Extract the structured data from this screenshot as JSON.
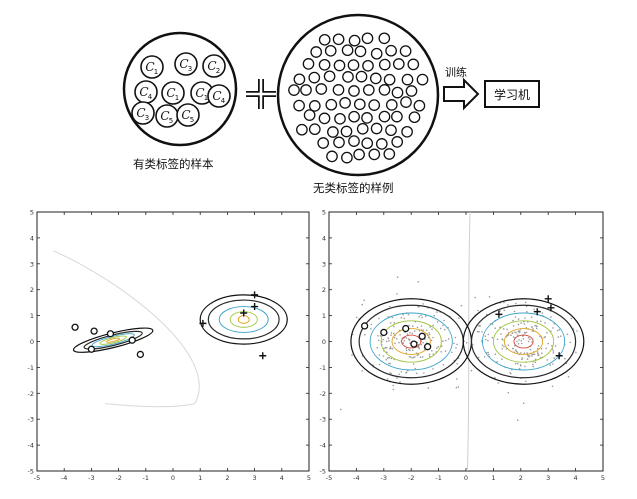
{
  "diagram": {
    "labeled_samples_caption": "有类标签的样本",
    "unlabeled_samples_caption": "无类标签的样例",
    "train_label": "训练",
    "learner_label": "学习机",
    "labeled_circle_labels": [
      "C1",
      "C3",
      "C2",
      "C4",
      "C1",
      "C1",
      "C4",
      "C3",
      "C5",
      "C5"
    ],
    "plus_symbol": "+"
  },
  "chart_data": [
    {
      "type": "scatter",
      "title": "",
      "xlabel": "",
      "ylabel": "",
      "xlim": [
        -5,
        5
      ],
      "ylim": [
        -5,
        5
      ],
      "xticks": [
        "-5",
        "-4",
        "-3",
        "-2",
        "-1",
        "0",
        "1",
        "2",
        "3",
        "4",
        "5"
      ],
      "yticks": [
        "5",
        "4",
        "3",
        "2",
        "1",
        "0",
        "-1",
        "-2",
        "-3",
        "-4",
        "-5"
      ],
      "series": [
        {
          "marker": "o",
          "points": [
            [
              -3.6,
              0.55
            ],
            [
              -2.9,
              0.4
            ],
            [
              -2.3,
              0.3
            ],
            [
              -1.5,
              0.05
            ],
            [
              -3.0,
              -0.3
            ],
            [
              -1.2,
              -0.5
            ]
          ]
        },
        {
          "marker": "+",
          "points": [
            [
              2.6,
              1.1
            ],
            [
              3.0,
              1.8
            ],
            [
              3.0,
              1.35
            ],
            [
              1.1,
              0.7
            ],
            [
              3.3,
              -0.55
            ]
          ]
        }
      ],
      "contours": [
        {
          "cx": -2.2,
          "cy": 0.05,
          "rx": [
            1.5,
            1.1,
            0.8,
            0.5,
            0.25
          ],
          "ry": [
            0.28,
            0.2,
            0.15,
            0.1,
            0.05
          ],
          "rotation_deg": -14
        },
        {
          "cx": 2.6,
          "cy": 0.85,
          "rx": [
            1.6,
            1.3,
            0.9,
            0.5,
            0.2
          ],
          "ry": [
            0.95,
            0.75,
            0.5,
            0.3,
            0.15
          ],
          "rotation_deg": 0
        }
      ]
    },
    {
      "type": "scatter",
      "title": "",
      "xlabel": "",
      "ylabel": "",
      "xlim": [
        -5,
        5
      ],
      "ylim": [
        -5,
        5
      ],
      "xticks": [
        "-5",
        "-4",
        "-3",
        "-2",
        "-1",
        "0",
        "1",
        "2",
        "3",
        "4",
        "5"
      ],
      "yticks": [
        "5",
        "4",
        "3",
        "2",
        "1",
        "0",
        "-1",
        "-2",
        "-3",
        "-4",
        "-5"
      ],
      "series": [
        {
          "marker": "o",
          "points": [
            [
              -3.7,
              0.6
            ],
            [
              -3.0,
              0.35
            ],
            [
              -2.2,
              0.5
            ],
            [
              -1.6,
              0.2
            ],
            [
              -1.9,
              -0.1
            ],
            [
              -1.4,
              -0.2
            ]
          ]
        },
        {
          "marker": "+",
          "points": [
            [
              3.0,
              1.65
            ],
            [
              3.1,
              1.3
            ],
            [
              2.6,
              1.15
            ],
            [
              1.2,
              1.05
            ],
            [
              3.4,
              -0.55
            ]
          ]
        }
      ],
      "contours": [
        {
          "cx": -2.0,
          "cy": 0.0,
          "rx": [
            2.2,
            1.9,
            1.5,
            1.1,
            0.7,
            0.35
          ],
          "ry": [
            1.65,
            1.4,
            1.1,
            0.8,
            0.5,
            0.25
          ],
          "rotation_deg": 0
        },
        {
          "cx": 2.1,
          "cy": 0.0,
          "rx": [
            2.2,
            1.9,
            1.5,
            1.1,
            0.7,
            0.35
          ],
          "ry": [
            1.65,
            1.4,
            1.1,
            0.8,
            0.5,
            0.25
          ],
          "rotation_deg": 0
        }
      ],
      "unlabeled_clusters": [
        {
          "cx": -2.0,
          "cy": 0.0,
          "n": 220
        },
        {
          "cx": 2.1,
          "cy": 0.0,
          "n": 220
        }
      ]
    }
  ]
}
